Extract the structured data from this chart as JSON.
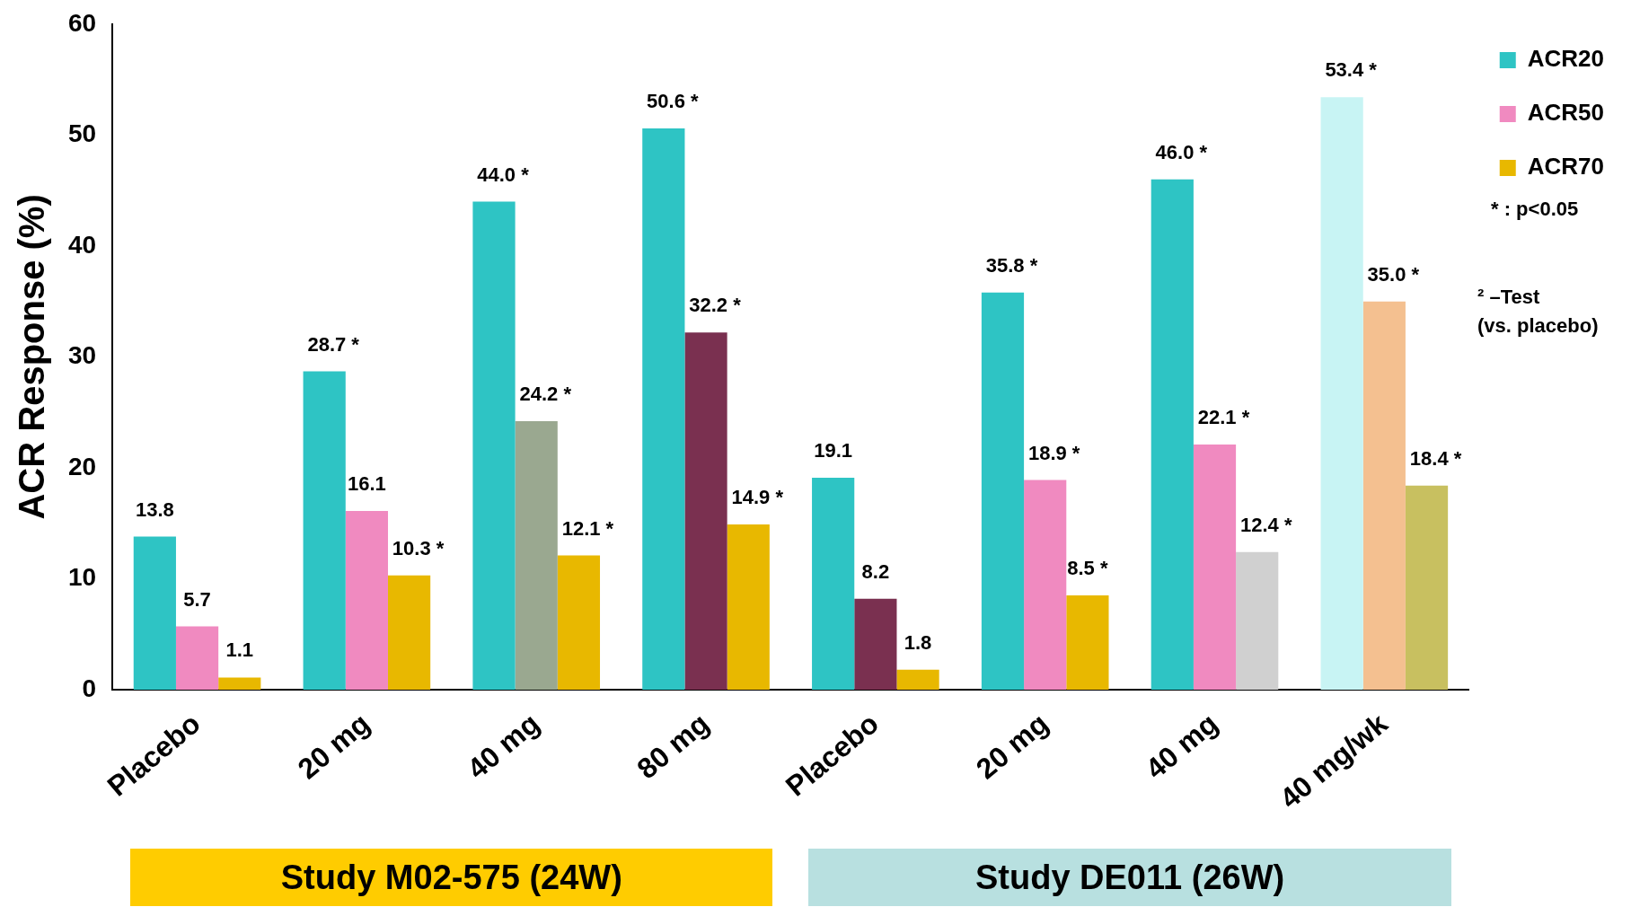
{
  "chart_data": {
    "type": "bar",
    "ylabel": "ACR Response (%)",
    "categories": [
      "Placebo",
      "20 mg",
      "40 mg",
      "80 mg",
      "Placebo",
      "20 mg",
      "40 mg",
      "40 mg/wk"
    ],
    "series": [
      {
        "name": "ACR20",
        "color": "#2ec4c4",
        "colors": [
          "#2ec4c4",
          "#2ec4c4",
          "#2ec4c4",
          "#2ec4c4",
          "#2ec4c4",
          "#2ec4c4",
          "#2ec4c4",
          "#c8f4f4"
        ],
        "values": [
          13.8,
          28.7,
          44.0,
          50.6,
          19.1,
          35.8,
          46.0,
          53.4
        ],
        "value_labels": [
          "13.8",
          "28.7 *",
          "44.0 *",
          "50.6 *",
          "19.1",
          "35.8 *",
          "46.0 *",
          "53.4 *"
        ]
      },
      {
        "name": "ACR50",
        "color": "#f08ac0",
        "colors": [
          "#f08ac0",
          "#f08ac0",
          "#9aa890",
          "#7a3050",
          "#7a3050",
          "#f08ac0",
          "#f08ac0",
          "#f4c090"
        ],
        "values": [
          5.7,
          16.1,
          24.2,
          32.2,
          8.2,
          18.9,
          22.1,
          35.0
        ],
        "value_labels": [
          "5.7",
          "16.1",
          "24.2 *",
          "32.2 *",
          "8.2",
          "18.9 *",
          "22.1 *",
          "35.0 *"
        ]
      },
      {
        "name": "ACR70",
        "color": "#e8b800",
        "colors": [
          "#e8b800",
          "#e8b800",
          "#e8b800",
          "#e8b800",
          "#e8b800",
          "#e8b800",
          "#d0d0d0",
          "#c8c060"
        ],
        "values": [
          1.1,
          10.3,
          12.1,
          14.9,
          1.8,
          8.5,
          12.4,
          18.4
        ],
        "value_labels": [
          "1.1",
          "10.3 *",
          "12.1 *",
          "14.9 *",
          "1.8",
          "8.5 *",
          "12.4 *",
          "18.4 *"
        ]
      }
    ],
    "ylim": [
      0,
      60
    ],
    "yticks": [
      0,
      10,
      20,
      30,
      40,
      50,
      60
    ],
    "grid": false,
    "legend": "top right",
    "annotations": [
      "* : p<0.05",
      "² –Test",
      "(vs. placebo)",
      "Study M02-575 (24W)",
      "Study DE011 (26W)"
    ]
  }
}
